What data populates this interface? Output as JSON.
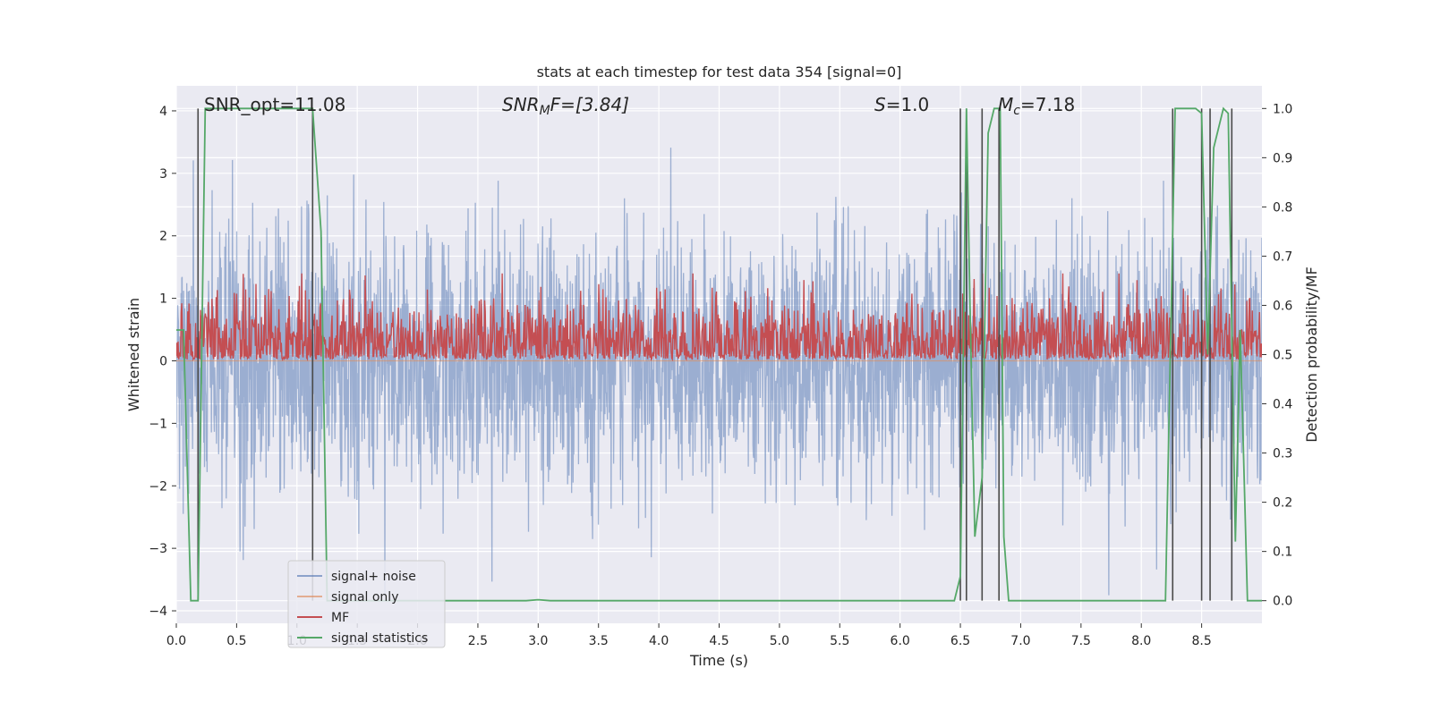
{
  "chart_data": {
    "type": "line",
    "title": "stats at each timestep for test data 354 [signal=0]",
    "xlabel": "Time (s)",
    "ylabel": "Whitened strain",
    "y2label": "Detection probability/MF",
    "xlim": [
      0.0,
      9.0
    ],
    "ylim": [
      -4.2,
      4.4
    ],
    "y2lim": [
      -0.046,
      1.046
    ],
    "x_ticks": [
      "0.0",
      "0.5",
      "1.0",
      "1.5",
      "2.0",
      "2.5",
      "3.0",
      "3.5",
      "4.0",
      "4.5",
      "5.0",
      "5.5",
      "6.0",
      "6.5",
      "7.0",
      "7.5",
      "8.0",
      "8.5"
    ],
    "y_ticks": [
      "−4",
      "−3",
      "−2",
      "−1",
      "0",
      "1",
      "2",
      "3",
      "4"
    ],
    "y2_ticks": [
      "0.0",
      "0.1",
      "0.2",
      "0.3",
      "0.4",
      "0.5",
      "0.6",
      "0.7",
      "0.8",
      "0.9",
      "1.0"
    ],
    "grid": true,
    "legend_position": "lower-left",
    "annotations": {
      "snr_opt": "SNR_opt=11.08",
      "snr_mf_sym": "SNR",
      "snr_mf_sub": "M",
      "snr_mf_rest": "F=[3.84]",
      "s_sym": "S",
      "s_rest": "=1.0",
      "mc_sym": "M",
      "mc_sub": "c",
      "mc_rest": "=7.18"
    },
    "colors": {
      "background": "#eaeaf2",
      "grid": "#ffffff",
      "signal_noise": "#4c72b0",
      "signal_only": "#dd8452",
      "mf": "#c44e52",
      "signal_statistics": "#55a868",
      "vlines": "#4a4a4a"
    },
    "series": [
      {
        "name": "signal+ noise",
        "axis": "left",
        "description_values": "white noise, peaks roughly within ±3.7",
        "noise_amplitude": 1.0
      },
      {
        "name": "signal only",
        "axis": "left",
        "values_note": "zero everywhere (signal=0)"
      },
      {
        "name": "MF",
        "axis": "right",
        "mean": 0.52,
        "spread": 0.05
      },
      {
        "name": "signal statistics",
        "axis": "right",
        "x": [
          0.0,
          0.06,
          0.12,
          0.18,
          0.24,
          0.3,
          0.6,
          0.9,
          1.1,
          1.13,
          1.2,
          1.25,
          1.28,
          1.35,
          1.5,
          2.0,
          2.5,
          2.9,
          3.0,
          3.1,
          3.5,
          4.0,
          4.5,
          5.0,
          5.5,
          6.0,
          6.45,
          6.5,
          6.55,
          6.58,
          6.62,
          6.68,
          6.73,
          6.78,
          6.83,
          6.86,
          6.9,
          6.95,
          7.0,
          7.5,
          8.0,
          8.2,
          8.28,
          8.33,
          8.45,
          8.5,
          8.55,
          8.6,
          8.68,
          8.72,
          8.78,
          8.82,
          8.88,
          8.94,
          9.0
        ],
        "values": [
          0.55,
          0.55,
          0.0,
          0.0,
          1.0,
          1.0,
          1.0,
          1.0,
          1.0,
          1.0,
          0.75,
          0.0,
          0.0,
          0.0,
          0.0,
          0.0,
          0.0,
          0.0,
          0.002,
          0.0,
          0.0,
          0.0,
          0.0,
          0.0,
          0.0,
          0.0,
          0.0,
          0.05,
          1.0,
          0.6,
          0.13,
          0.25,
          0.95,
          1.0,
          1.0,
          0.13,
          0.0,
          0.0,
          0.0,
          0.0,
          0.0,
          0.0,
          1.0,
          1.0,
          1.0,
          0.99,
          0.5,
          0.92,
          1.0,
          0.99,
          0.12,
          0.55,
          0.0,
          0.0,
          0.0
        ]
      }
    ],
    "vlines_x": [
      0.18,
      1.13,
      6.5,
      6.55,
      6.68,
      6.82,
      8.26,
      8.5,
      8.57,
      8.75
    ]
  }
}
